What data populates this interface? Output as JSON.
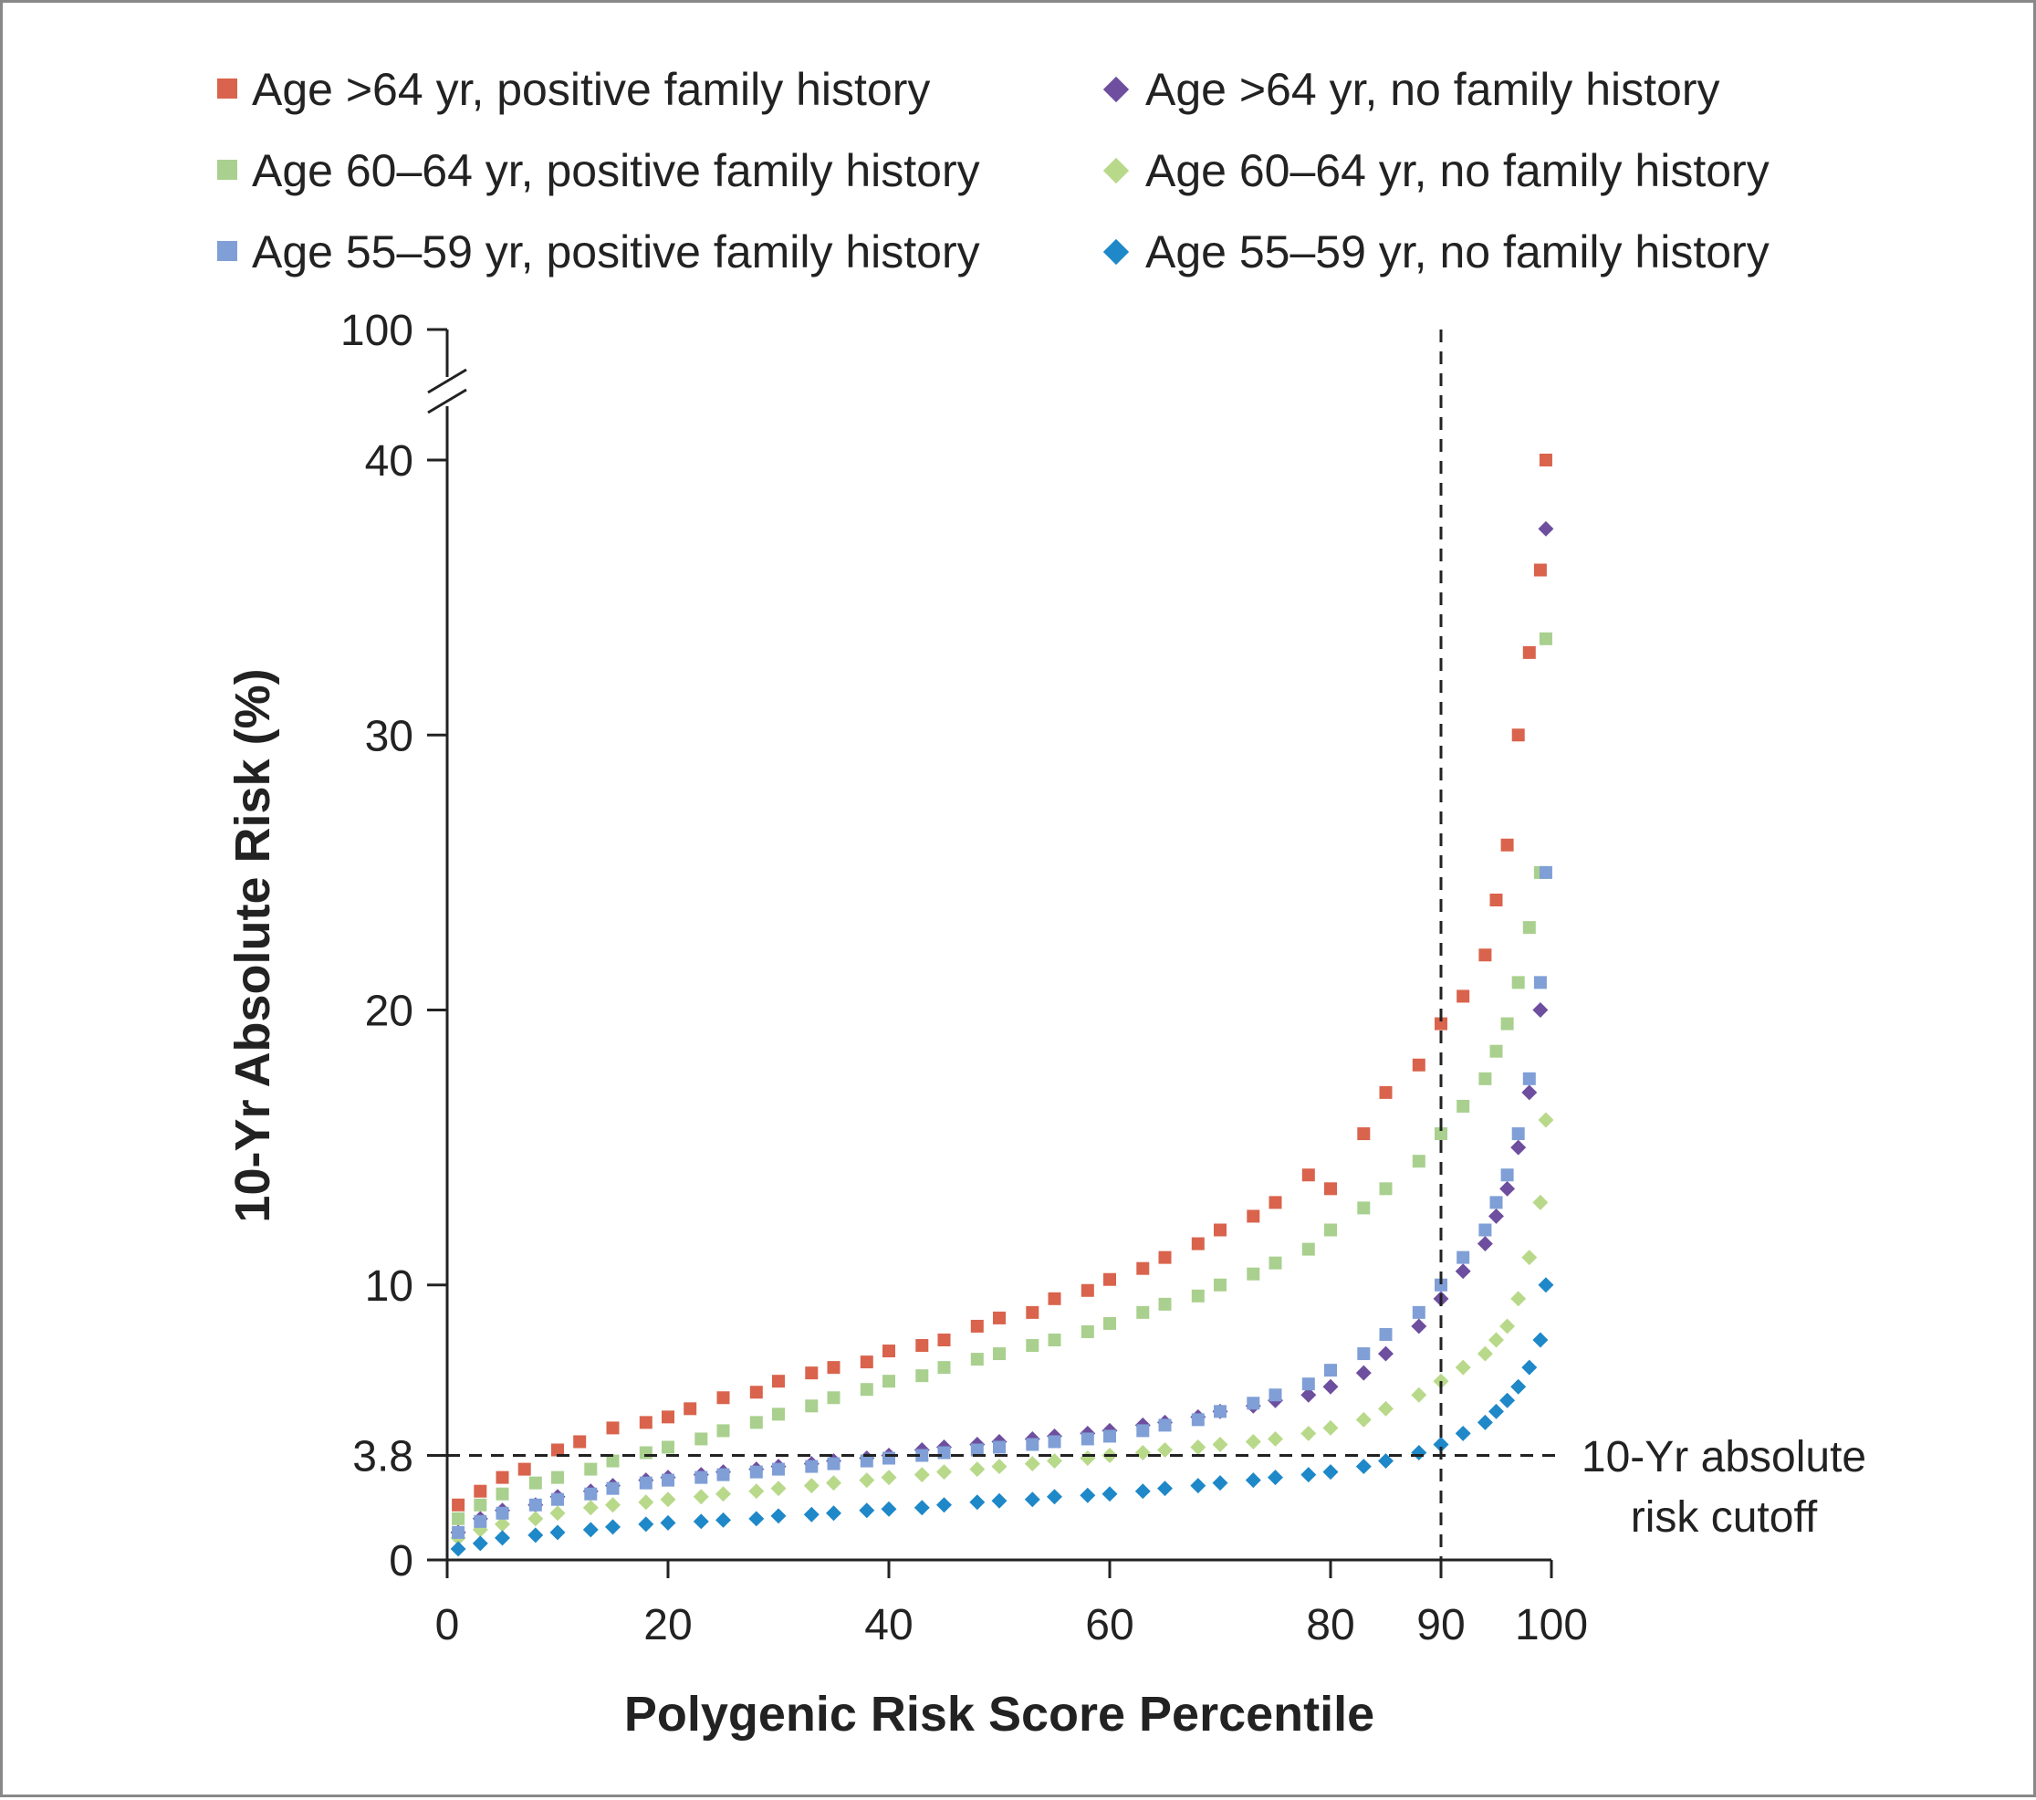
{
  "chart_data": {
    "type": "scatter",
    "title": "",
    "xlabel": "Polygenic Risk Score Percentile",
    "ylabel": "10-Yr Absolute Risk (%)",
    "xlim": [
      0,
      100
    ],
    "ylim": [
      0,
      40
    ],
    "y_axis_break": {
      "from": 40,
      "to": 100
    },
    "x_ticks": [
      "0",
      "20",
      "40",
      "60",
      "80",
      "90",
      "100"
    ],
    "y_ticks": [
      "0",
      "3.8",
      "10",
      "20",
      "30",
      "40",
      "100"
    ],
    "reference_lines": {
      "vertical_x": 90,
      "horizontal_y": 3.8,
      "horizontal_label": [
        "10-Yr absolute",
        "risk cutoff"
      ]
    },
    "legend_placement": "top",
    "series": [
      {
        "name": "Age >64 yr, positive family history",
        "marker": "square",
        "color": "#d9634c",
        "x": [
          1,
          3,
          5,
          7,
          10,
          12,
          15,
          18,
          20,
          22,
          25,
          28,
          30,
          33,
          35,
          38,
          40,
          43,
          45,
          48,
          50,
          53,
          55,
          58,
          60,
          63,
          65,
          68,
          70,
          73,
          75,
          78,
          80,
          83,
          85,
          88,
          90,
          92,
          94,
          95,
          96,
          97,
          98,
          99,
          99.5
        ],
        "y": [
          2.0,
          2.5,
          3.0,
          3.3,
          4.0,
          4.3,
          4.8,
          5.0,
          5.2,
          5.5,
          5.9,
          6.1,
          6.5,
          6.8,
          7.0,
          7.2,
          7.6,
          7.8,
          8.0,
          8.5,
          8.8,
          9.0,
          9.5,
          9.8,
          10.2,
          10.6,
          11.0,
          11.5,
          12.0,
          12.5,
          13.0,
          14.0,
          13.5,
          15.5,
          17.0,
          18.0,
          19.5,
          20.5,
          22.0,
          24.0,
          26.0,
          30.0,
          33.0,
          36.0,
          40.0
        ]
      },
      {
        "name": "Age >64 yr, no family history",
        "marker": "diamond",
        "color": "#6e4e9e",
        "x": [
          1,
          3,
          5,
          8,
          10,
          13,
          15,
          18,
          20,
          23,
          25,
          28,
          30,
          33,
          35,
          38,
          40,
          43,
          45,
          48,
          50,
          53,
          55,
          58,
          60,
          63,
          65,
          68,
          70,
          73,
          75,
          78,
          80,
          83,
          85,
          88,
          90,
          92,
          94,
          95,
          96,
          97,
          98,
          99,
          99.5
        ],
        "y": [
          1.0,
          1.5,
          1.8,
          2.0,
          2.3,
          2.5,
          2.7,
          2.9,
          3.0,
          3.1,
          3.2,
          3.3,
          3.4,
          3.5,
          3.6,
          3.7,
          3.8,
          4.0,
          4.1,
          4.2,
          4.3,
          4.4,
          4.5,
          4.6,
          4.7,
          4.9,
          5.0,
          5.2,
          5.4,
          5.6,
          5.8,
          6.0,
          6.3,
          6.8,
          7.5,
          8.5,
          9.5,
          10.5,
          11.5,
          12.5,
          13.5,
          15.0,
          17.0,
          20.0,
          37.5
        ]
      },
      {
        "name": "Age 60–64 yr, positive family history",
        "marker": "square",
        "color": "#a9d08e",
        "x": [
          1,
          3,
          5,
          8,
          10,
          13,
          15,
          18,
          20,
          23,
          25,
          28,
          30,
          33,
          35,
          38,
          40,
          43,
          45,
          48,
          50,
          53,
          55,
          58,
          60,
          63,
          65,
          68,
          70,
          73,
          75,
          78,
          80,
          83,
          85,
          88,
          90,
          92,
          94,
          95,
          96,
          97,
          98,
          99,
          99.5
        ],
        "y": [
          1.5,
          2.0,
          2.4,
          2.8,
          3.0,
          3.3,
          3.6,
          3.9,
          4.1,
          4.4,
          4.7,
          5.0,
          5.3,
          5.6,
          5.9,
          6.2,
          6.5,
          6.7,
          7.0,
          7.3,
          7.5,
          7.8,
          8.0,
          8.3,
          8.6,
          9.0,
          9.3,
          9.6,
          10.0,
          10.4,
          10.8,
          11.3,
          12.0,
          12.8,
          13.5,
          14.5,
          15.5,
          16.5,
          17.5,
          18.5,
          19.5,
          21.0,
          23.0,
          25.0,
          33.5
        ]
      },
      {
        "name": "Age 60–64 yr, no family history",
        "marker": "diamond",
        "color": "#b8d98a",
        "x": [
          1,
          3,
          5,
          8,
          10,
          13,
          15,
          18,
          20,
          23,
          25,
          28,
          30,
          33,
          35,
          38,
          40,
          43,
          45,
          48,
          50,
          53,
          55,
          58,
          60,
          63,
          65,
          68,
          70,
          73,
          75,
          78,
          80,
          83,
          85,
          88,
          90,
          92,
          94,
          95,
          96,
          97,
          98,
          99,
          99.5
        ],
        "y": [
          0.8,
          1.1,
          1.3,
          1.5,
          1.7,
          1.9,
          2.0,
          2.1,
          2.2,
          2.3,
          2.4,
          2.5,
          2.6,
          2.7,
          2.8,
          2.9,
          3.0,
          3.1,
          3.2,
          3.3,
          3.4,
          3.5,
          3.6,
          3.7,
          3.8,
          3.9,
          4.0,
          4.1,
          4.2,
          4.3,
          4.4,
          4.6,
          4.8,
          5.1,
          5.5,
          6.0,
          6.5,
          7.0,
          7.5,
          8.0,
          8.5,
          9.5,
          11.0,
          13.0,
          16.0
        ]
      },
      {
        "name": "Age 55–59 yr, positive family history",
        "marker": "square",
        "color": "#7f9fd6",
        "x": [
          1,
          3,
          5,
          8,
          10,
          13,
          15,
          18,
          20,
          23,
          25,
          28,
          30,
          33,
          35,
          38,
          40,
          43,
          45,
          48,
          50,
          53,
          55,
          58,
          60,
          63,
          65,
          68,
          70,
          73,
          75,
          78,
          80,
          83,
          85,
          88,
          90,
          92,
          94,
          95,
          96,
          97,
          98,
          99,
          99.5
        ],
        "y": [
          1.0,
          1.4,
          1.7,
          2.0,
          2.2,
          2.4,
          2.6,
          2.8,
          2.9,
          3.0,
          3.1,
          3.2,
          3.3,
          3.4,
          3.5,
          3.6,
          3.7,
          3.8,
          3.9,
          4.0,
          4.1,
          4.2,
          4.3,
          4.4,
          4.5,
          4.7,
          4.9,
          5.1,
          5.4,
          5.7,
          6.0,
          6.4,
          6.9,
          7.5,
          8.2,
          9.0,
          10.0,
          11.0,
          12.0,
          13.0,
          14.0,
          15.5,
          17.5,
          21.0,
          25.0
        ]
      },
      {
        "name": "Age 55–59 yr, no family history",
        "marker": "diamond",
        "color": "#1e88c8",
        "x": [
          1,
          3,
          5,
          8,
          10,
          13,
          15,
          18,
          20,
          23,
          25,
          28,
          30,
          33,
          35,
          38,
          40,
          43,
          45,
          48,
          50,
          53,
          55,
          58,
          60,
          63,
          65,
          68,
          70,
          73,
          75,
          78,
          80,
          83,
          85,
          88,
          90,
          92,
          94,
          95,
          96,
          97,
          98,
          99,
          99.5
        ],
        "y": [
          0.4,
          0.6,
          0.8,
          0.9,
          1.0,
          1.1,
          1.2,
          1.3,
          1.35,
          1.4,
          1.45,
          1.5,
          1.6,
          1.65,
          1.7,
          1.8,
          1.85,
          1.9,
          2.0,
          2.1,
          2.15,
          2.2,
          2.3,
          2.35,
          2.4,
          2.5,
          2.6,
          2.7,
          2.8,
          2.9,
          3.0,
          3.1,
          3.2,
          3.4,
          3.6,
          3.9,
          4.2,
          4.6,
          5.0,
          5.4,
          5.8,
          6.3,
          7.0,
          8.0,
          10.0
        ]
      }
    ]
  }
}
